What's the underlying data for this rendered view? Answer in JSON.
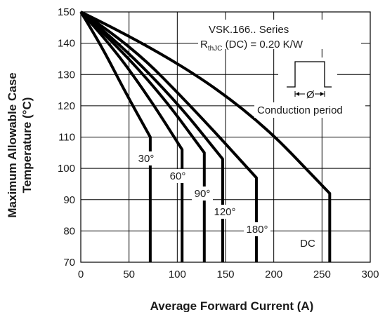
{
  "chart_data": {
    "type": "line",
    "xlabel": "Average Forward Current (A)",
    "ylabel_line1": "Maximum Allowable Case",
    "ylabel_line2": "Temperature (°C)",
    "xlim": [
      0,
      300
    ],
    "ylim": [
      70,
      150
    ],
    "xticks": [
      0,
      50,
      100,
      150,
      200,
      250,
      300
    ],
    "yticks": [
      70,
      80,
      90,
      100,
      110,
      120,
      130,
      140,
      150
    ],
    "grid": true,
    "annotation": {
      "series_title": "VSK.166.. Series",
      "rth_main": "R",
      "rth_sub": "thJC",
      "rth_rest": " (DC) = 0.20 K/W",
      "phi_symbol": "Ø",
      "conduction_label": "Conduction period"
    },
    "series": [
      {
        "name": "30°",
        "x": [
          0,
          20,
          45,
          72,
          72
        ],
        "y": [
          150,
          140,
          125,
          110,
          70
        ]
      },
      {
        "name": "60°",
        "x": [
          0,
          30,
          70,
          105,
          105
        ],
        "y": [
          150,
          140,
          123,
          106,
          70
        ]
      },
      {
        "name": "90°",
        "x": [
          0,
          35,
          85,
          128,
          128
        ],
        "y": [
          150,
          140,
          123,
          105,
          70
        ]
      },
      {
        "name": "120°",
        "x": [
          0,
          40,
          100,
          147,
          147
        ],
        "y": [
          150,
          140,
          121,
          103,
          70
        ]
      },
      {
        "name": "180°",
        "x": [
          0,
          50,
          120,
          182,
          182
        ],
        "y": [
          150,
          140,
          118,
          97,
          70
        ]
      },
      {
        "name": "DC",
        "x": [
          0,
          80,
          180,
          258,
          258
        ],
        "y": [
          150,
          138,
          117,
          92,
          70
        ]
      }
    ]
  }
}
